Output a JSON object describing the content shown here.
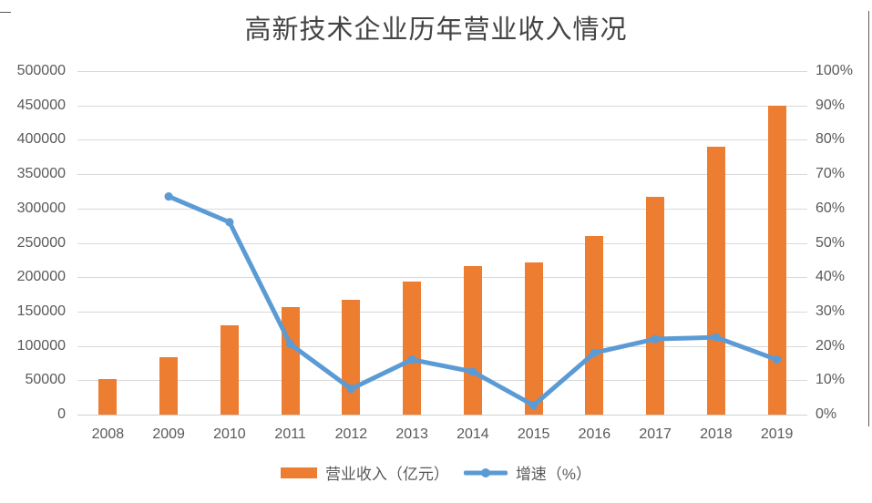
{
  "chart_data": {
    "type": "bar+line",
    "title": "高新技术企业历年营业收入情况",
    "categories": [
      "2008",
      "2009",
      "2010",
      "2011",
      "2012",
      "2013",
      "2014",
      "2015",
      "2016",
      "2017",
      "2018",
      "2019"
    ],
    "series": [
      {
        "name": "营业收入（亿元）",
        "type": "bar",
        "axis": "left",
        "color": "#ED7D31",
        "values": [
          52000,
          84000,
          130000,
          156000,
          167000,
          194000,
          216000,
          222000,
          260000,
          317000,
          390000,
          450000
        ]
      },
      {
        "name": "增速（%）",
        "type": "line",
        "axis": "right",
        "color": "#5B9BD5",
        "values": [
          null,
          63.5,
          56,
          20.5,
          7.5,
          16,
          12.5,
          2.7,
          18,
          22,
          22.5,
          16
        ]
      }
    ],
    "left_axis": {
      "min": 0,
      "max": 500000,
      "step": 50000,
      "tick_labels": [
        "500000",
        "450000",
        "400000",
        "350000",
        "300000",
        "250000",
        "200000",
        "150000",
        "100000",
        "50000",
        "0"
      ]
    },
    "right_axis": {
      "min": 0,
      "max": 100,
      "step": 10,
      "tick_labels": [
        "100%",
        "90%",
        "80%",
        "70%",
        "60%",
        "50%",
        "40%",
        "30%",
        "20%",
        "10%",
        "0%"
      ]
    },
    "grid": true,
    "legend_position": "bottom-center"
  },
  "colors": {
    "bar": "#ED7D31",
    "line": "#5B9BD5",
    "gridline": "#D9D9D9",
    "axis_text": "#595959",
    "title_text": "#444444",
    "cell_border": "#595959",
    "background": "#FFFFFF"
  }
}
